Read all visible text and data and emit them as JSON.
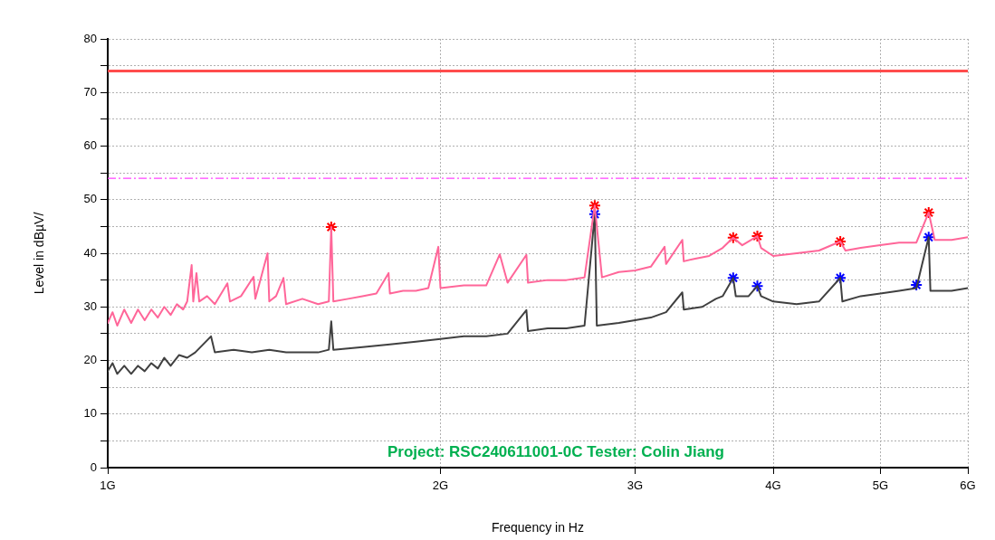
{
  "chart_data": {
    "type": "line",
    "xlabel": "Frequency in Hz",
    "ylabel": "Level in dBµV/",
    "log": "x",
    "grid": true,
    "legend": false,
    "xlim": [
      1,
      6
    ],
    "xticks": [
      {
        "value": 1,
        "label": "1G"
      },
      {
        "value": 2,
        "label": "2G"
      },
      {
        "value": 3,
        "label": "3G"
      },
      {
        "value": 4,
        "label": "4G"
      },
      {
        "value": 5,
        "label": "5G"
      },
      {
        "value": 6,
        "label": "6G"
      }
    ],
    "ylim": [
      0,
      80
    ],
    "yticks": [
      0,
      {
        "value": 5,
        "label": null
      },
      10,
      {
        "value": 15,
        "label": null
      },
      20,
      {
        "value": 25,
        "label": null
      },
      30,
      {
        "value": 35,
        "label": null
      },
      40,
      {
        "value": 45,
        "label": null
      },
      50,
      {
        "value": 55,
        "label": null
      },
      60,
      {
        "value": 65,
        "label": null
      },
      70,
      {
        "value": 75,
        "label": null
      },
      80
    ],
    "annotations": [
      "Project: RSC240611001-0C Tester: Colin Jiang"
    ],
    "ref_lines": [
      {
        "axis": "y",
        "value": 74,
        "label": null,
        "color": "#ff4d4d",
        "line_style": "solid"
      },
      {
        "axis": "y",
        "value": 54,
        "label": null,
        "color": "#ff44ff",
        "line_style": "dashed"
      }
    ],
    "series": [
      {
        "color": "#ff6699",
        "x": [
          1.0,
          1.01,
          1.02,
          1.035,
          1.05,
          1.065,
          1.08,
          1.095,
          1.11,
          1.125,
          1.14,
          1.155,
          1.17,
          1.18,
          1.191,
          1.195,
          1.203,
          1.21,
          1.23,
          1.25,
          1.283,
          1.29,
          1.32,
          1.355,
          1.36,
          1.395,
          1.4,
          1.42,
          1.442,
          1.45,
          1.5,
          1.55,
          1.585,
          1.593,
          1.6,
          1.65,
          1.7,
          1.75,
          1.795,
          1.8,
          1.85,
          1.9,
          1.95,
          1.991,
          2.0,
          2.1,
          2.2,
          2.263,
          2.3,
          2.392,
          2.4,
          2.5,
          2.6,
          2.7,
          2.758,
          2.8,
          2.9,
          3.0,
          3.1,
          3.19,
          3.2,
          3.31,
          3.32,
          3.4,
          3.5,
          3.6,
          3.68,
          3.75,
          3.87,
          3.9,
          4.0,
          4.2,
          4.4,
          4.6,
          4.65,
          4.8,
          5.0,
          5.2,
          5.39,
          5.53,
          5.6,
          5.8,
          6.0
        ],
        "values": [
          27,
          29,
          26.5,
          29.5,
          27,
          29.5,
          27.5,
          29.5,
          28,
          30,
          28.5,
          30.5,
          29.5,
          31,
          37.8,
          31,
          36.3,
          31,
          32,
          30.5,
          34.4,
          31,
          32,
          35.6,
          31.5,
          40,
          31,
          32,
          35.4,
          30.5,
          31.5,
          30.5,
          31,
          44.9,
          31,
          31.5,
          32,
          32.5,
          36.3,
          32.5,
          33,
          33,
          33.5,
          41.2,
          33.5,
          34,
          34,
          39.8,
          34.5,
          39.7,
          34.5,
          35,
          35,
          35.5,
          48.9,
          35.5,
          36.5,
          36.8,
          37.5,
          41.2,
          38,
          42.5,
          38.5,
          39,
          39.5,
          41,
          42.9,
          41.5,
          43.2,
          41,
          39.5,
          40,
          40.5,
          42.2,
          40.5,
          41,
          41.5,
          42,
          42,
          47.6,
          42.5,
          42.5,
          43
        ]
      },
      {
        "color": "#404040",
        "x": [
          1.0,
          1.01,
          1.02,
          1.035,
          1.05,
          1.065,
          1.08,
          1.095,
          1.11,
          1.125,
          1.14,
          1.16,
          1.18,
          1.2,
          1.24,
          1.25,
          1.3,
          1.35,
          1.4,
          1.45,
          1.5,
          1.55,
          1.585,
          1.593,
          1.6,
          1.7,
          1.8,
          1.9,
          2.0,
          2.1,
          2.2,
          2.3,
          2.392,
          2.4,
          2.5,
          2.6,
          2.7,
          2.758,
          2.77,
          2.9,
          3.0,
          3.1,
          3.2,
          3.31,
          3.32,
          3.45,
          3.55,
          3.6,
          3.68,
          3.7,
          3.8,
          3.87,
          3.9,
          4.0,
          4.2,
          4.4,
          4.6,
          4.62,
          4.8,
          5.0,
          5.2,
          5.39,
          5.53,
          5.55,
          5.8,
          6.0
        ],
        "values": [
          18,
          19.5,
          17.5,
          19,
          17.5,
          19,
          18,
          19.5,
          18.5,
          20.5,
          19,
          21,
          20.5,
          21.5,
          24.5,
          21.5,
          22,
          21.5,
          22,
          21.5,
          21.5,
          21.5,
          22,
          27.3,
          22,
          22.5,
          23,
          23.5,
          24,
          24.5,
          24.5,
          25,
          29.4,
          25.5,
          26,
          26,
          26.5,
          47.3,
          26.5,
          27,
          27.5,
          28,
          29,
          32.7,
          29.5,
          30,
          31.5,
          32,
          35.4,
          32,
          32,
          33.9,
          32,
          31,
          30.5,
          31,
          35.4,
          31,
          32,
          32.5,
          33,
          33.5,
          43,
          33,
          33,
          33.5
        ]
      },
      {
        "type": "scatter",
        "color": "#ff0000",
        "marker": "cross",
        "x": [
          1.593,
          2.758,
          3.68,
          3.87,
          4.6,
          5.53
        ],
        "values": [
          44.9,
          48.9,
          42.9,
          43.2,
          42.2,
          47.6
        ]
      },
      {
        "type": "scatter",
        "color": "#0000ff",
        "marker": "cross",
        "x": [
          2.758,
          3.68,
          3.87,
          4.6,
          5.39,
          5.53
        ],
        "values": [
          47.3,
          35.4,
          33.9,
          35.4,
          34.1,
          43
        ]
      }
    ]
  }
}
